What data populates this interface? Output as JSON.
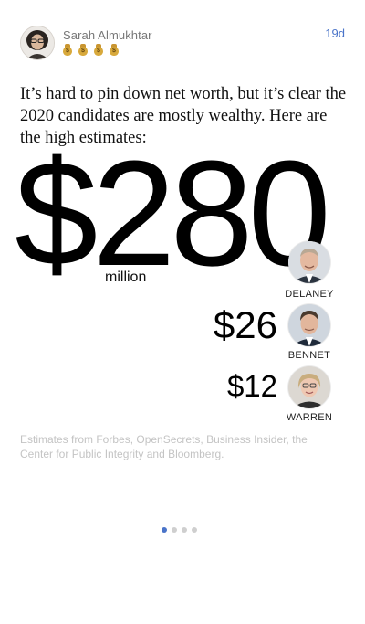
{
  "post": {
    "author_name": "Sarah Almukhtar",
    "badges": [
      "money-bag-icon",
      "money-bag-icon",
      "money-bag-icon",
      "money-bag-icon"
    ],
    "timestamp": "19d"
  },
  "content": {
    "intro_text": "It’s hard to pin down net worth, but it’s clear the 2020 candidates are mostly wealthy. Here are the high estimates:",
    "candidates": [
      {
        "amount": "$280",
        "unit": "million",
        "name": "DELANEY"
      },
      {
        "amount": "$26",
        "name": "BENNET"
      },
      {
        "amount": "$12",
        "name": "WARREN"
      }
    ],
    "source_note": "Estimates from Forbes, OpenSecrets, Business Insider, the Center for Public Integrity and Bloomberg."
  },
  "pagination": {
    "total": 4,
    "active_index": 0
  },
  "colors": {
    "accent": "#4a74c9",
    "author": "#777777",
    "source": "#c4c4c4",
    "badge": "#d8a93c"
  }
}
